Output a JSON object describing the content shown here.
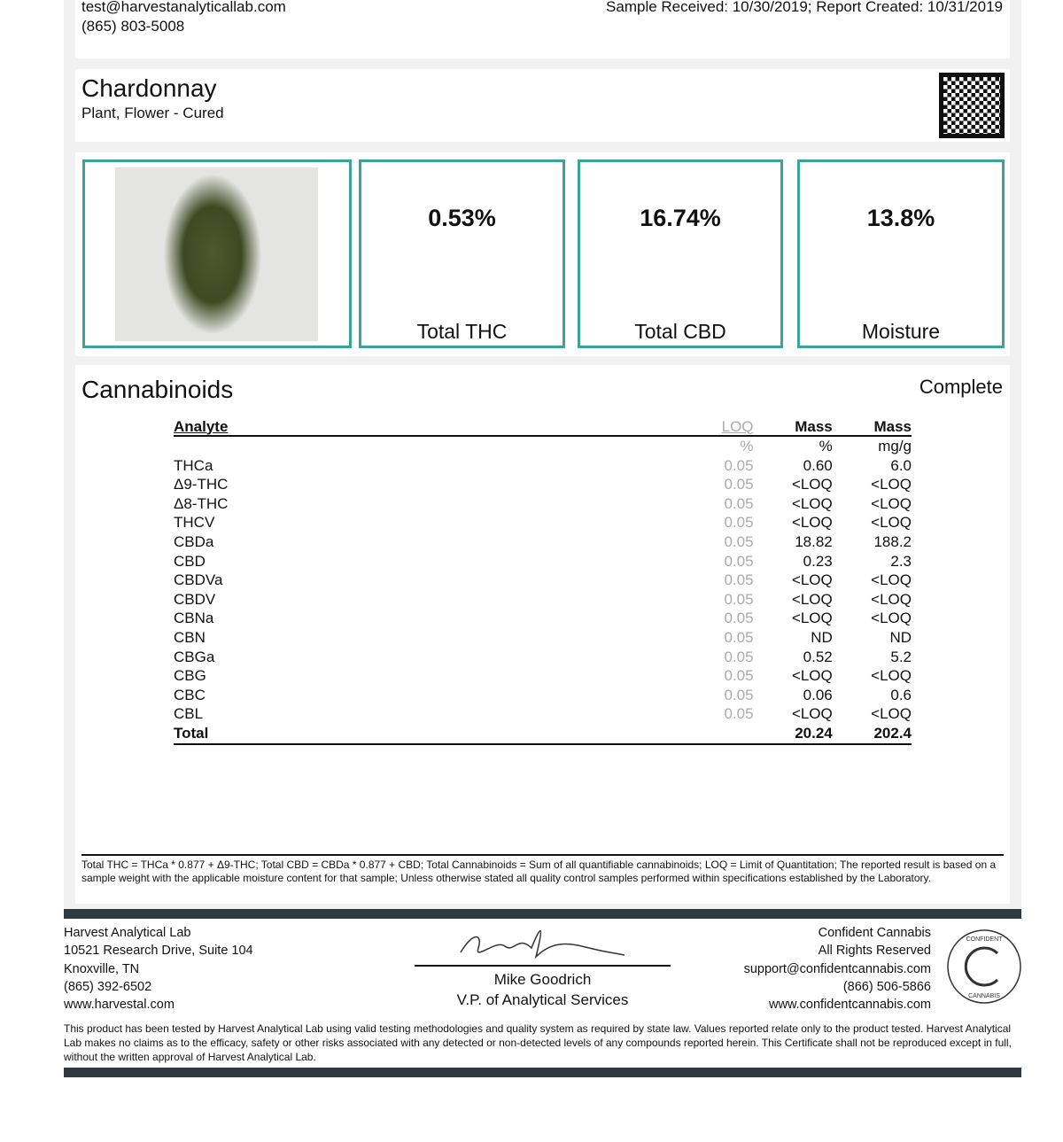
{
  "header": {
    "email": "test@harvestanalyticallab.com",
    "phone": "(865) 803-5008",
    "dates": "Sample Received: 10/30/2019; Report Created: 10/31/2019"
  },
  "sample": {
    "name": "Chardonnay",
    "type": "Plant, Flower - Cured"
  },
  "summary": [
    {
      "value": "0.53%",
      "label": "Total THC"
    },
    {
      "value": "16.74%",
      "label": "Total CBD"
    },
    {
      "value": "13.8%",
      "label": "Moisture"
    }
  ],
  "colors": {
    "accent": "#3aa597",
    "bar": "#2e3a40"
  },
  "cannabinoids": {
    "title": "Cannabinoids",
    "status": "Complete",
    "columns": [
      "Analyte",
      "LOQ",
      "Mass",
      "Mass"
    ],
    "units": [
      "",
      "%",
      "%",
      "mg/g"
    ],
    "rows": [
      [
        "THCa",
        "0.05",
        "0.60",
        "6.0"
      ],
      [
        "Δ9-THC",
        "0.05",
        "<LOQ",
        "<LOQ"
      ],
      [
        "Δ8-THC",
        "0.05",
        "<LOQ",
        "<LOQ"
      ],
      [
        "THCV",
        "0.05",
        "<LOQ",
        "<LOQ"
      ],
      [
        "CBDa",
        "0.05",
        "18.82",
        "188.2"
      ],
      [
        "CBD",
        "0.05",
        "0.23",
        "2.3"
      ],
      [
        "CBDVa",
        "0.05",
        "<LOQ",
        "<LOQ"
      ],
      [
        "CBDV",
        "0.05",
        "<LOQ",
        "<LOQ"
      ],
      [
        "CBNa",
        "0.05",
        "<LOQ",
        "<LOQ"
      ],
      [
        "CBN",
        "0.05",
        "ND",
        "ND"
      ],
      [
        "CBGa",
        "0.05",
        "0.52",
        "5.2"
      ],
      [
        "CBG",
        "0.05",
        "<LOQ",
        "<LOQ"
      ],
      [
        "CBC",
        "0.05",
        "0.06",
        "0.6"
      ],
      [
        "CBL",
        "0.05",
        "<LOQ",
        "<LOQ"
      ]
    ],
    "total": [
      "Total",
      "",
      "20.24",
      "202.4"
    ]
  },
  "footnote": "Total THC = THCa * 0.877 + Δ9-THC; Total CBD = CBDa * 0.877 + CBD; Total Cannabinoids = Sum of all quantifiable cannabinoids; LOQ = Limit of Quantitation; The reported result is based on a sample weight with the applicable moisture content for that sample; Unless otherwise stated all quality control samples performed within specifications established by the Laboratory.",
  "lab": {
    "lines": [
      "Harvest Analytical Lab",
      "10521 Research Drive, Suite 104",
      "Knoxville, TN",
      "(865) 392-6502",
      "www.harvestal.com"
    ]
  },
  "signer": {
    "name": "Mike Goodrich",
    "title": "V.P. of Analytical Services"
  },
  "provider": {
    "lines": [
      "Confident Cannabis",
      "All Rights Reserved",
      "support@confidentcannabis.com",
      "(866) 506-5866",
      "www.confidentcannabis.com"
    ],
    "logo_text": "CONFIDENT CANNABIS"
  },
  "disclaimer": "This product has been tested by Harvest Analytical Lab using valid testing methodologies and quality system as required by state law. Values reported relate only to the product tested. Harvest Analytical Lab makes no claims as to the efficacy, safety or other risks associated with any detected or non-detected levels of any compounds reported herein. This Certificate shall not be reproduced except in full, without the written approval of Harvest Analytical Lab."
}
